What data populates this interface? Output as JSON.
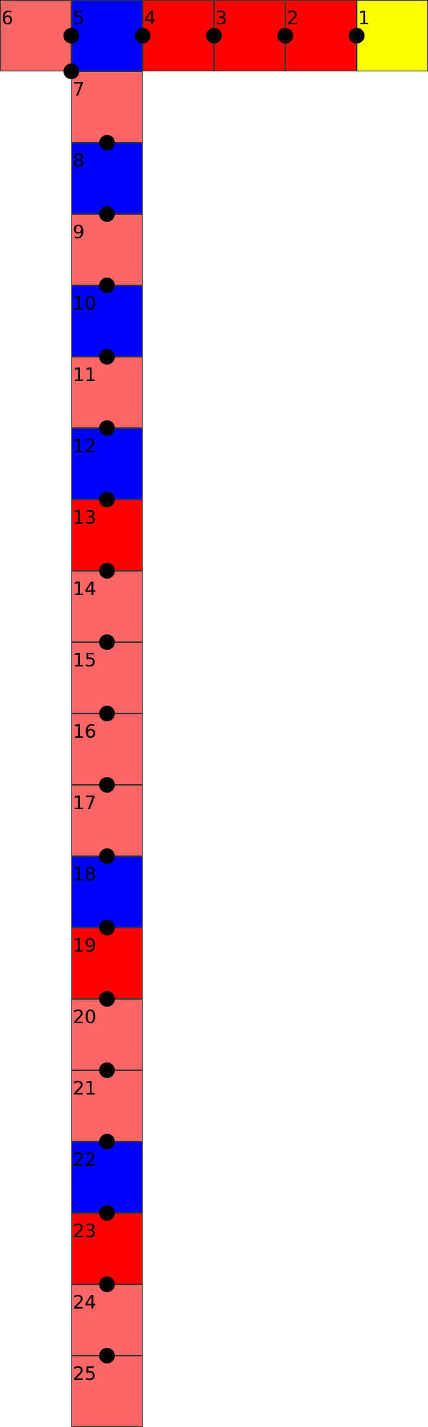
{
  "colors": {
    "pink": "#ff6666",
    "blue": "#0000ff",
    "red": "#ff0000",
    "yellow": "#ffff00",
    "dot": "#000000",
    "border": "#333333"
  },
  "cells": [
    {
      "label": "1",
      "color": "yellow"
    },
    {
      "label": "2",
      "color": "red"
    },
    {
      "label": "3",
      "color": "red"
    },
    {
      "label": "4",
      "color": "red"
    },
    {
      "label": "5",
      "color": "blue"
    },
    {
      "label": "6",
      "color": "pink"
    },
    {
      "label": "7",
      "color": "pink"
    },
    {
      "label": "8",
      "color": "blue"
    },
    {
      "label": "9",
      "color": "pink"
    },
    {
      "label": "10",
      "color": "blue"
    },
    {
      "label": "11",
      "color": "pink"
    },
    {
      "label": "12",
      "color": "blue"
    },
    {
      "label": "13",
      "color": "red"
    },
    {
      "label": "14",
      "color": "pink"
    },
    {
      "label": "15",
      "color": "pink"
    },
    {
      "label": "16",
      "color": "pink"
    },
    {
      "label": "17",
      "color": "pink"
    },
    {
      "label": "18",
      "color": "blue"
    },
    {
      "label": "19",
      "color": "red"
    },
    {
      "label": "20",
      "color": "pink"
    },
    {
      "label": "21",
      "color": "pink"
    },
    {
      "label": "22",
      "color": "blue"
    },
    {
      "label": "23",
      "color": "red"
    },
    {
      "label": "24",
      "color": "pink"
    },
    {
      "label": "25",
      "color": "pink"
    }
  ]
}
